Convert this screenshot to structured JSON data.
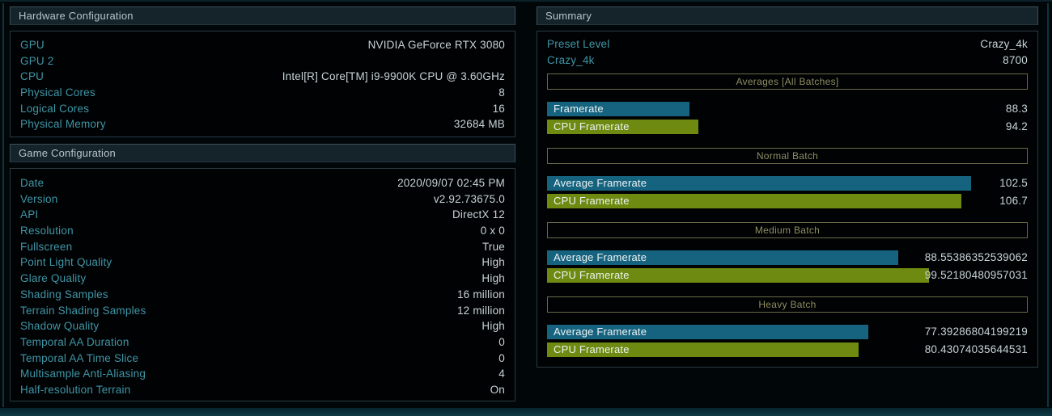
{
  "colors": {
    "gpu_bar": "#16637f",
    "cpu_bar": "#6e8a10",
    "label_teal": "#3f96a7",
    "value_light": "#c8d4d8",
    "subheader_tan": "#908e63"
  },
  "hardware": {
    "title": "Hardware Configuration",
    "rows": [
      {
        "label": "GPU",
        "value": "NVIDIA GeForce RTX 3080"
      },
      {
        "label": "GPU 2",
        "value": ""
      },
      {
        "label": "CPU",
        "value": "Intel[R] Core[TM] i9-9900K CPU @ 3.60GHz"
      },
      {
        "label": "Physical Cores",
        "value": "8"
      },
      {
        "label": "Logical Cores",
        "value": "16"
      },
      {
        "label": "Physical Memory",
        "value": "32684 MB"
      }
    ]
  },
  "game": {
    "title": "Game Configuration",
    "rows": [
      {
        "label": "Date",
        "value": "2020/09/07 02:45 PM"
      },
      {
        "label": "Version",
        "value": "v2.92.73675.0"
      },
      {
        "label": "API",
        "value": "DirectX 12"
      },
      {
        "label": "Resolution",
        "value": "0 x 0"
      },
      {
        "label": "Fullscreen",
        "value": "True"
      },
      {
        "label": "Point Light Quality",
        "value": "High"
      },
      {
        "label": "Glare Quality",
        "value": "High"
      },
      {
        "label": "Shading Samples",
        "value": "16 million"
      },
      {
        "label": "Terrain Shading Samples",
        "value": "12 million"
      },
      {
        "label": "Shadow Quality",
        "value": "High"
      },
      {
        "label": "Temporal AA Duration",
        "value": "0"
      },
      {
        "label": "Temporal AA Time Slice",
        "value": "0"
      },
      {
        "label": "Multisample Anti-Aliasing",
        "value": "4"
      },
      {
        "label": "Half-resolution Terrain",
        "value": "On"
      }
    ]
  },
  "summary": {
    "title": "Summary",
    "preset_rows": [
      {
        "label": "Preset Level",
        "value": "Crazy_4k"
      },
      {
        "label": "Crazy_4k",
        "value": "8700"
      }
    ],
    "batches": [
      {
        "title": "Averages [All Batches]",
        "bars": [
          {
            "label": "Framerate",
            "value": "88.3",
            "width": "29.6%"
          },
          {
            "label": "CPU Framerate",
            "value": "94.2",
            "width": "31.4%"
          }
        ]
      },
      {
        "title": "Normal Batch",
        "bars": [
          {
            "label": "Average Framerate",
            "value": "102.5",
            "width": "88.2%"
          },
          {
            "label": "CPU Framerate",
            "value": "106.7",
            "width": "86.2%"
          }
        ]
      },
      {
        "title": "Medium Batch",
        "bars": [
          {
            "label": "Average Framerate",
            "value": "88.55386352539062",
            "width": "73.1%"
          },
          {
            "label": "CPU Framerate",
            "value": "99.52180480957031",
            "width": "79.4%"
          }
        ]
      },
      {
        "title": "Heavy Batch",
        "bars": [
          {
            "label": "Average Framerate",
            "value": "77.39286804199219",
            "width": "66.9%"
          },
          {
            "label": "CPU Framerate",
            "value": "80.43074035644531",
            "width": "64.8%"
          }
        ]
      }
    ]
  }
}
